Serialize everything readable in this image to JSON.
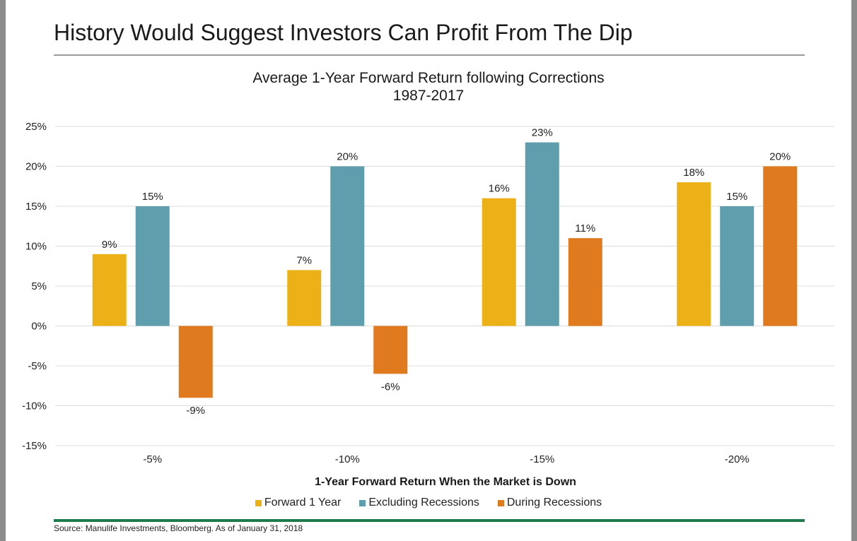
{
  "slide": {
    "title": "History Would Suggest Investors Can Profit From The Dip",
    "source": "Source: Manulife Investments, Bloomberg. As of January 31, 2018"
  },
  "chart_data": {
    "type": "bar",
    "title": "Average 1-Year Forward Return following Corrections",
    "subtitle": "1987-2017",
    "xlabel": "1-Year Forward Return When the Market is Down",
    "ylabel": "",
    "categories": [
      "-5%",
      "-10%",
      "-15%",
      "-20%"
    ],
    "series": [
      {
        "name": "Forward 1 Year",
        "color": "#EDB118",
        "values": [
          9,
          7,
          16,
          18
        ],
        "labels": [
          "9%",
          "7%",
          "16%",
          "18%"
        ]
      },
      {
        "name": "Excluding Recessions",
        "color": "#5F9EAD",
        "values": [
          15,
          20,
          23,
          15
        ],
        "labels": [
          "15%",
          "20%",
          "23%",
          "15%"
        ]
      },
      {
        "name": "During Recessions",
        "color": "#DF7A1F",
        "values": [
          -9,
          -6,
          11,
          20
        ],
        "labels": [
          "-9%",
          "-6%",
          "11%",
          "20%"
        ]
      }
    ],
    "ylim": [
      -15,
      25
    ],
    "yticks": [
      25,
      20,
      15,
      10,
      5,
      0,
      -5,
      -10,
      -15
    ],
    "ytick_labels": [
      "25%",
      "20%",
      "15%",
      "10%",
      "5%",
      "0%",
      "-5%",
      "-10%",
      "-15%"
    ],
    "grid": true,
    "legend_position": "bottom"
  }
}
